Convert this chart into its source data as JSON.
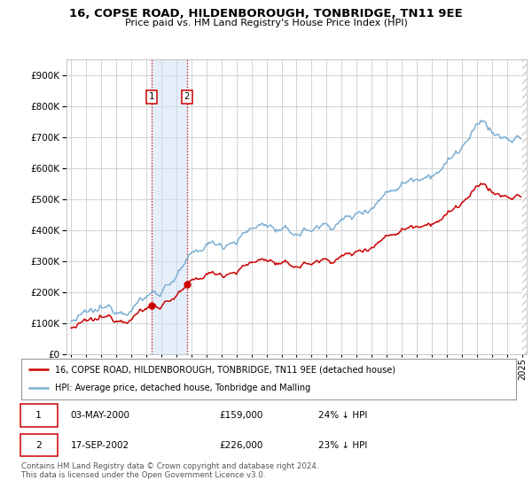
{
  "title": "16, COPSE ROAD, HILDENBOROUGH, TONBRIDGE, TN11 9EE",
  "subtitle": "Price paid vs. HM Land Registry's House Price Index (HPI)",
  "background_color": "#ffffff",
  "grid_color": "#cccccc",
  "hpi_color": "#7bafd4",
  "sale_color": "#cc0000",
  "annotation1": {
    "label": "1",
    "date_num": 2000.37,
    "value": 159000
  },
  "annotation2": {
    "label": "2",
    "date_num": 2002.71,
    "value": 226000
  },
  "legend_line1": "16, COPSE ROAD, HILDENBOROUGH, TONBRIDGE, TN11 9EE (detached house)",
  "legend_line2": "HPI: Average price, detached house, Tonbridge and Malling",
  "table_row1": [
    "1",
    "03-MAY-2000",
    "£159,000",
    "24% ↓ HPI"
  ],
  "table_row2": [
    "2",
    "17-SEP-2002",
    "£226,000",
    "23% ↓ HPI"
  ],
  "footnote": "Contains HM Land Registry data © Crown copyright and database right 2024.\nThis data is licensed under the Open Government Licence v3.0.",
  "ylim": [
    0,
    950000
  ],
  "xlim_start": 1994.7,
  "xlim_end": 2025.3
}
